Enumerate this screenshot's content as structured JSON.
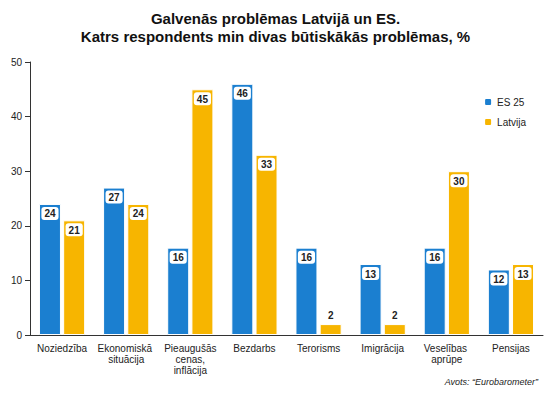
{
  "chart_data": {
    "type": "bar",
    "title": "Galvenās problēmas Latvijā un ES.",
    "subtitle": "Katrs respondents min divas būtiskākās problēmas, %",
    "source": "Avots: “Eurobarometer”",
    "categories": [
      "Noziedzība",
      "Ekonomiskā situācija",
      "Pieaugušās cenas, inflācija",
      "Bezdarbs",
      "Terorisms",
      "Imigrācija",
      "Veselības aprūpe",
      "Pensijas"
    ],
    "series": [
      {
        "name": "ES 25",
        "color": "#1b7fd0",
        "values": [
          24,
          27,
          16,
          46,
          16,
          13,
          16,
          12
        ]
      },
      {
        "name": "Latvija",
        "color": "#f7b500",
        "values": [
          21,
          24,
          45,
          33,
          2,
          2,
          30,
          13
        ]
      }
    ],
    "ylim": [
      0,
      50
    ],
    "yticks": [
      0,
      10,
      20,
      30,
      40,
      50
    ],
    "grid": false,
    "legend": "upper-right",
    "data_labels": true
  }
}
